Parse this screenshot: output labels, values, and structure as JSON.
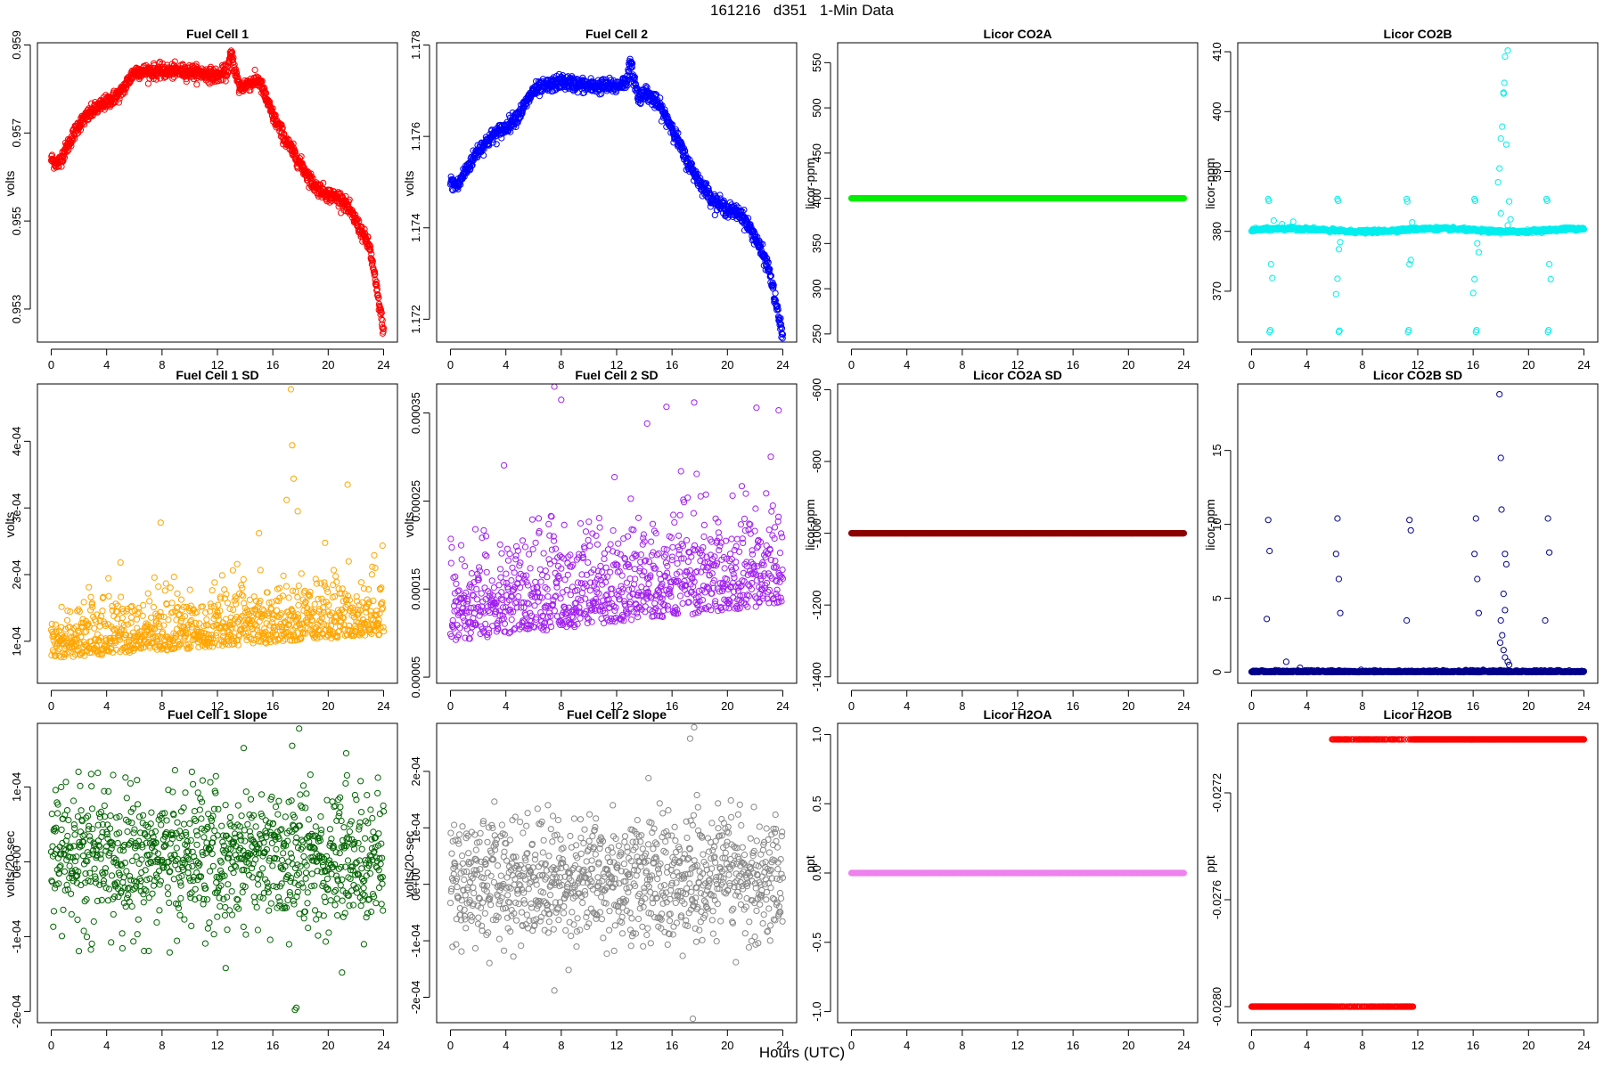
{
  "figure": {
    "title": "161216   d351   1-Min Data",
    "xlabel": "Hours (UTC)"
  },
  "chart_data": [
    {
      "type": "scatter",
      "title": "Fuel Cell 1",
      "ylabel": "volts",
      "color": "#ff0000",
      "xlim": [
        -1,
        25
      ],
      "ylim": [
        0.95225,
        0.95905
      ],
      "xticks": [
        0,
        4,
        8,
        12,
        16,
        20,
        24
      ],
      "xtick_labels": [
        "0",
        "4",
        "8",
        "12",
        "16",
        "20",
        "24"
      ],
      "yticks": [
        0.953,
        0.955,
        0.957,
        0.959
      ],
      "ytick_labels": [
        "0.953",
        "0.955",
        "0.957",
        "0.959"
      ],
      "gen": {
        "kind": "curve",
        "pts": [
          [
            0,
            0.9564
          ],
          [
            0.5,
            0.9563
          ],
          [
            1,
            0.9566
          ],
          [
            2,
            0.9572
          ],
          [
            3,
            0.9575
          ],
          [
            4,
            0.9577
          ],
          [
            5,
            0.9579
          ],
          [
            6,
            0.9584
          ],
          [
            8,
            0.9584
          ],
          [
            10,
            0.9584
          ],
          [
            12,
            0.9583
          ],
          [
            12.7,
            0.9584
          ],
          [
            13,
            0.9588
          ],
          [
            13.6,
            0.958
          ],
          [
            14,
            0.9581
          ],
          [
            15,
            0.9582
          ],
          [
            16,
            0.9574
          ],
          [
            17,
            0.9568
          ],
          [
            18,
            0.9563
          ],
          [
            19,
            0.9558
          ],
          [
            20,
            0.9556
          ],
          [
            21,
            0.9555
          ],
          [
            22,
            0.955
          ],
          [
            23,
            0.9544
          ],
          [
            24,
            0.9525
          ]
        ],
        "noise": 8e-05,
        "n": 1200
      }
    },
    {
      "type": "scatter",
      "title": "Fuel Cell 2",
      "ylabel": "volts",
      "color": "#0000ff",
      "xlim": [
        -1,
        25
      ],
      "ylim": [
        1.1715,
        1.17805
      ],
      "xticks": [
        0,
        4,
        8,
        12,
        16,
        20,
        24
      ],
      "xtick_labels": [
        "0",
        "4",
        "8",
        "12",
        "16",
        "20",
        "24"
      ],
      "yticks": [
        1.172,
        1.174,
        1.176,
        1.178
      ],
      "ytick_labels": [
        "1.172",
        "1.174",
        "1.176",
        "1.178"
      ],
      "gen": {
        "kind": "curve",
        "pts": [
          [
            0,
            1.175
          ],
          [
            0.5,
            1.1749
          ],
          [
            1,
            1.1752
          ],
          [
            2,
            1.1757
          ],
          [
            3,
            1.176
          ],
          [
            4,
            1.1762
          ],
          [
            5,
            1.1765
          ],
          [
            6,
            1.177
          ],
          [
            8,
            1.1772
          ],
          [
            10,
            1.1771
          ],
          [
            12,
            1.1771
          ],
          [
            12.7,
            1.1772
          ],
          [
            13,
            1.1776
          ],
          [
            13.6,
            1.1768
          ],
          [
            14,
            1.177
          ],
          [
            15,
            1.1767
          ],
          [
            16,
            1.1762
          ],
          [
            17,
            1.1755
          ],
          [
            18,
            1.175
          ],
          [
            19,
            1.1746
          ],
          [
            20,
            1.1744
          ],
          [
            21,
            1.1743
          ],
          [
            22,
            1.1738
          ],
          [
            23,
            1.1731
          ],
          [
            24,
            1.1716
          ]
        ],
        "noise": 8e-05,
        "n": 1200
      }
    },
    {
      "type": "scatter",
      "title": "Licor CO2A",
      "ylabel": "licor-ppm",
      "color": "#00ee00",
      "xlim": [
        -1,
        25
      ],
      "ylim": [
        241,
        572
      ],
      "xticks": [
        0,
        4,
        8,
        12,
        16,
        20,
        24
      ],
      "xtick_labels": [
        "0",
        "4",
        "8",
        "12",
        "16",
        "20",
        "24"
      ],
      "yticks": [
        250,
        300,
        350,
        400,
        450,
        500,
        550
      ],
      "ytick_labels": [
        "250",
        "300",
        "350",
        "400",
        "450",
        "500",
        "550"
      ],
      "gen": {
        "kind": "const",
        "value": 400,
        "n": 700
      }
    },
    {
      "type": "scatter",
      "title": "Licor CO2B",
      "ylabel": "licor-ppm",
      "color": "#00eeee",
      "xlim": [
        -1,
        25
      ],
      "ylim": [
        361.5,
        411.5
      ],
      "xticks": [
        0,
        4,
        8,
        12,
        16,
        20,
        24
      ],
      "xtick_labels": [
        "0",
        "4",
        "8",
        "12",
        "16",
        "20",
        "24"
      ],
      "yticks": [
        370,
        380,
        390,
        400,
        410
      ],
      "ytick_labels": [
        "370",
        "380",
        "390",
        "400",
        "410"
      ],
      "gen": {
        "kind": "co2b",
        "base": 380.2,
        "n": 1000
      },
      "outliers": [
        [
          1.2,
          385.4
        ],
        [
          1.25,
          385.1
        ],
        [
          1.3,
          363.2
        ],
        [
          1.35,
          363.5
        ],
        [
          1.4,
          374.5
        ],
        [
          1.5,
          372.2
        ],
        [
          1.6,
          381.8
        ],
        [
          2.2,
          381.2
        ],
        [
          3.0,
          381.6
        ],
        [
          6.2,
          385.4
        ],
        [
          6.25,
          385.1
        ],
        [
          6.3,
          363.2
        ],
        [
          6.35,
          363.4
        ],
        [
          6.1,
          369.5
        ],
        [
          6.2,
          372.1
        ],
        [
          6.3,
          377
        ],
        [
          6.4,
          378.2
        ],
        [
          11.2,
          385.4
        ],
        [
          11.25,
          385.0
        ],
        [
          11.3,
          363.2
        ],
        [
          11.35,
          363.5
        ],
        [
          11.4,
          374.5
        ],
        [
          11.5,
          375.2
        ],
        [
          11.6,
          381.5
        ],
        [
          16.1,
          385.4
        ],
        [
          16.15,
          385.1
        ],
        [
          16.2,
          363.2
        ],
        [
          16.25,
          363.5
        ],
        [
          16.0,
          369.7
        ],
        [
          16.1,
          372.0
        ],
        [
          16.3,
          378.0
        ],
        [
          16.4,
          376.5
        ],
        [
          17.8,
          388.2
        ],
        [
          17.9,
          390.5
        ],
        [
          18.0,
          395.5
        ],
        [
          18.1,
          397.5
        ],
        [
          18.2,
          403.2
        ],
        [
          18.25,
          404.8
        ],
        [
          18.3,
          409.2
        ],
        [
          18.5,
          410.2
        ],
        [
          18.2,
          403.0
        ],
        [
          18.4,
          394.5
        ],
        [
          18.0,
          383.0
        ],
        [
          18.6,
          385.0
        ],
        [
          18.5,
          381.0
        ],
        [
          18.7,
          382.0
        ],
        [
          21.3,
          385.4
        ],
        [
          21.35,
          385.1
        ],
        [
          21.4,
          363.2
        ],
        [
          21.45,
          363.5
        ],
        [
          21.5,
          374.5
        ],
        [
          21.6,
          372.0
        ]
      ]
    },
    {
      "type": "scatter",
      "title": "Fuel Cell 1 SD",
      "ylabel": "volts",
      "color": "#ffa500",
      "xlim": [
        -1,
        25
      ],
      "ylim": [
        3.7e-05,
        0.000486
      ],
      "xticks": [
        0,
        4,
        8,
        12,
        16,
        20,
        24
      ],
      "xtick_labels": [
        "0",
        "4",
        "8",
        "12",
        "16",
        "20",
        "24"
      ],
      "yticks": [
        0.0001,
        0.0002,
        0.0003,
        0.0004
      ],
      "ytick_labels": [
        "1e-04",
        "2e-04",
        "3e-04",
        "4e-04"
      ],
      "gen": {
        "kind": "sd",
        "base": 8.5e-05,
        "trend": 1.5e-06,
        "spread": 4.5e-05,
        "min": 4.5e-05,
        "n": 1000
      },
      "outliers": [
        [
          17.3,
          0.000478
        ],
        [
          17.4,
          0.000394
        ],
        [
          17.5,
          0.000344
        ],
        [
          17.0,
          0.000312
        ],
        [
          7.9,
          0.000278
        ],
        [
          15.0,
          0.000262
        ],
        [
          21.4,
          0.000335
        ],
        [
          17.8,
          0.000295
        ]
      ]
    },
    {
      "type": "scatter",
      "title": "Fuel Cell 2 SD",
      "ylabel": "volts",
      "color": "#a020f0",
      "xlim": [
        -1,
        25
      ],
      "ylim": [
        4.3e-05,
        0.000383
      ],
      "xticks": [
        0,
        4,
        8,
        12,
        16,
        20,
        24
      ],
      "xtick_labels": [
        "0",
        "4",
        "8",
        "12",
        "16",
        "20",
        "24"
      ],
      "yticks": [
        5e-05,
        0.00015,
        0.00025,
        0.00035
      ],
      "ytick_labels": [
        "0.00005",
        "0.00015",
        "0.00025",
        "0.00035"
      ],
      "gen": {
        "kind": "sd",
        "base": 0.000105,
        "trend": 1.8e-06,
        "spread": 6e-05,
        "min": 5e-05,
        "n": 1000
      },
      "outliers": [
        [
          7.5,
          0.00038
        ],
        [
          8.0,
          0.000365
        ],
        [
          15.6,
          0.000357
        ],
        [
          17.6,
          0.000362
        ],
        [
          22.1,
          0.000356
        ],
        [
          23.7,
          0.000353
        ],
        [
          14.2,
          0.000338
        ]
      ]
    },
    {
      "type": "scatter",
      "title": "Licor CO2A SD",
      "ylabel": "licor-ppm",
      "color": "#8b0000",
      "xlim": [
        -1,
        25
      ],
      "ylim": [
        -1418,
        -584
      ],
      "xticks": [
        0,
        4,
        8,
        12,
        16,
        20,
        24
      ],
      "xtick_labels": [
        "0",
        "4",
        "8",
        "12",
        "16",
        "20",
        "24"
      ],
      "yticks": [
        -1400,
        -1200,
        -1000,
        -800,
        -600
      ],
      "ytick_labels": [
        "-1400",
        "-1200",
        "-1000",
        "-800",
        "-600"
      ],
      "gen": {
        "kind": "const",
        "value": -1000,
        "n": 700
      }
    },
    {
      "type": "scatter",
      "title": "Licor CO2B SD",
      "ylabel": "licor-ppm",
      "color": "#00008b",
      "xlim": [
        -1,
        25
      ],
      "ylim": [
        -0.75,
        19.5
      ],
      "xticks": [
        0,
        4,
        8,
        12,
        16,
        20,
        24
      ],
      "xtick_labels": [
        "0",
        "4",
        "8",
        "12",
        "16",
        "20",
        "24"
      ],
      "yticks": [
        0,
        5,
        10,
        15
      ],
      "ytick_labels": [
        "0",
        "5",
        "10",
        "15"
      ],
      "gen": {
        "kind": "lowsd",
        "n": 1000
      },
      "outliers": [
        [
          1.2,
          10.3
        ],
        [
          1.3,
          8.2
        ],
        [
          1.1,
          3.6
        ],
        [
          6.2,
          10.4
        ],
        [
          6.1,
          8.0
        ],
        [
          6.3,
          6.3
        ],
        [
          6.4,
          4.0
        ],
        [
          11.4,
          10.3
        ],
        [
          11.5,
          9.6
        ],
        [
          11.2,
          3.5
        ],
        [
          16.2,
          10.4
        ],
        [
          16.1,
          8.0
        ],
        [
          16.3,
          6.3
        ],
        [
          16.4,
          4.0
        ],
        [
          17.9,
          18.8
        ],
        [
          18.0,
          14.5
        ],
        [
          18.05,
          11.0
        ],
        [
          18.3,
          8.0
        ],
        [
          18.4,
          7.3
        ],
        [
          18.2,
          5.3
        ],
        [
          18.3,
          4.2
        ],
        [
          18.0,
          3.5
        ],
        [
          18.1,
          2.5
        ],
        [
          17.95,
          2.0
        ],
        [
          18.2,
          1.5
        ],
        [
          18.3,
          1.0
        ],
        [
          18.5,
          0.7
        ],
        [
          18.6,
          0.5
        ],
        [
          21.4,
          10.4
        ],
        [
          21.5,
          8.1
        ],
        [
          21.2,
          3.5
        ],
        [
          2.5,
          0.7
        ],
        [
          3.5,
          0.3
        ]
      ]
    },
    {
      "type": "scatter",
      "title": "Fuel Cell 1 Slope",
      "ylabel": "volts/20-sec",
      "color": "#006400",
      "xlim": [
        -1,
        25
      ],
      "ylim": [
        -0.000215,
        0.000185
      ],
      "xticks": [
        0,
        4,
        8,
        12,
        16,
        20,
        24
      ],
      "xtick_labels": [
        "0",
        "4",
        "8",
        "12",
        "16",
        "20",
        "24"
      ],
      "yticks": [
        -0.0002,
        -0.0001,
        0,
        0.0001
      ],
      "ytick_labels": [
        "-2e-04",
        "-1e-04",
        "0e+00",
        "1e-04"
      ],
      "gen": {
        "kind": "noise",
        "mean": 5e-06,
        "sd": 4.5e-05,
        "lim": 0.000125,
        "n": 1000
      },
      "outliers": [
        [
          17.6,
          -0.000198
        ],
        [
          17.7,
          -0.000195
        ],
        [
          17.9,
          0.000178
        ],
        [
          17.4,
          0.000155
        ],
        [
          21.3,
          0.000145
        ],
        [
          13.9,
          0.000152
        ],
        [
          12.6,
          -0.000142
        ],
        [
          21.0,
          -0.000148
        ]
      ]
    },
    {
      "type": "scatter",
      "title": "Fuel Cell 2 Slope",
      "ylabel": "volts/20-sec",
      "color": "#888888",
      "xlim": [
        -1,
        25
      ],
      "ylim": [
        -0.000245,
        0.000285
      ],
      "xticks": [
        0,
        4,
        8,
        12,
        16,
        20,
        24
      ],
      "xtick_labels": [
        "0",
        "4",
        "8",
        "12",
        "16",
        "20",
        "24"
      ],
      "yticks": [
        -0.0002,
        -0.0001,
        0,
        0.0001,
        0.0002
      ],
      "ytick_labels": [
        "-2e-04",
        "-1e-04",
        "0e+00",
        "1e-04",
        "2e-04"
      ],
      "gen": {
        "kind": "noise",
        "mean": 1e-05,
        "sd": 5.5e-05,
        "lim": 0.000155,
        "n": 1000
      },
      "outliers": [
        [
          17.6,
          0.000278
        ],
        [
          17.3,
          0.000258
        ],
        [
          17.5,
          -0.000238
        ],
        [
          14.3,
          0.000188
        ],
        [
          7.5,
          -0.000188
        ],
        [
          17.8,
          0.000158
        ]
      ]
    },
    {
      "type": "scatter",
      "title": "Licor H2OA",
      "ylabel": "ppt",
      "color": "#ee82ee",
      "xlim": [
        -1,
        25
      ],
      "ylim": [
        -1.08,
        1.08
      ],
      "xticks": [
        0,
        4,
        8,
        12,
        16,
        20,
        24
      ],
      "xtick_labels": [
        "0",
        "4",
        "8",
        "12",
        "16",
        "20",
        "24"
      ],
      "yticks": [
        -1.0,
        -0.5,
        0.0,
        0.5,
        1.0
      ],
      "ytick_labels": [
        "-1.0",
        "-0.5",
        "0.0",
        "0.5",
        "1.0"
      ],
      "gen": {
        "kind": "const",
        "value": 0,
        "n": 700
      }
    },
    {
      "type": "scatter",
      "title": "Licor H2OB",
      "ylabel": "ppt",
      "color": "#ff0000",
      "xlim": [
        -1,
        25
      ],
      "ylim": [
        -0.02806,
        -0.02694
      ],
      "xticks": [
        0,
        4,
        8,
        12,
        16,
        20,
        24
      ],
      "xtick_labels": [
        "0",
        "4",
        "8",
        "12",
        "16",
        "20",
        "24"
      ],
      "yticks": [
        -0.028,
        -0.0276,
        -0.0272
      ],
      "ytick_labels": [
        "-0.0280",
        "-0.0276",
        "-0.0272"
      ],
      "gen": {
        "kind": "h2ob",
        "low": -0.028,
        "high": -0.027,
        "n": 1000
      }
    }
  ]
}
